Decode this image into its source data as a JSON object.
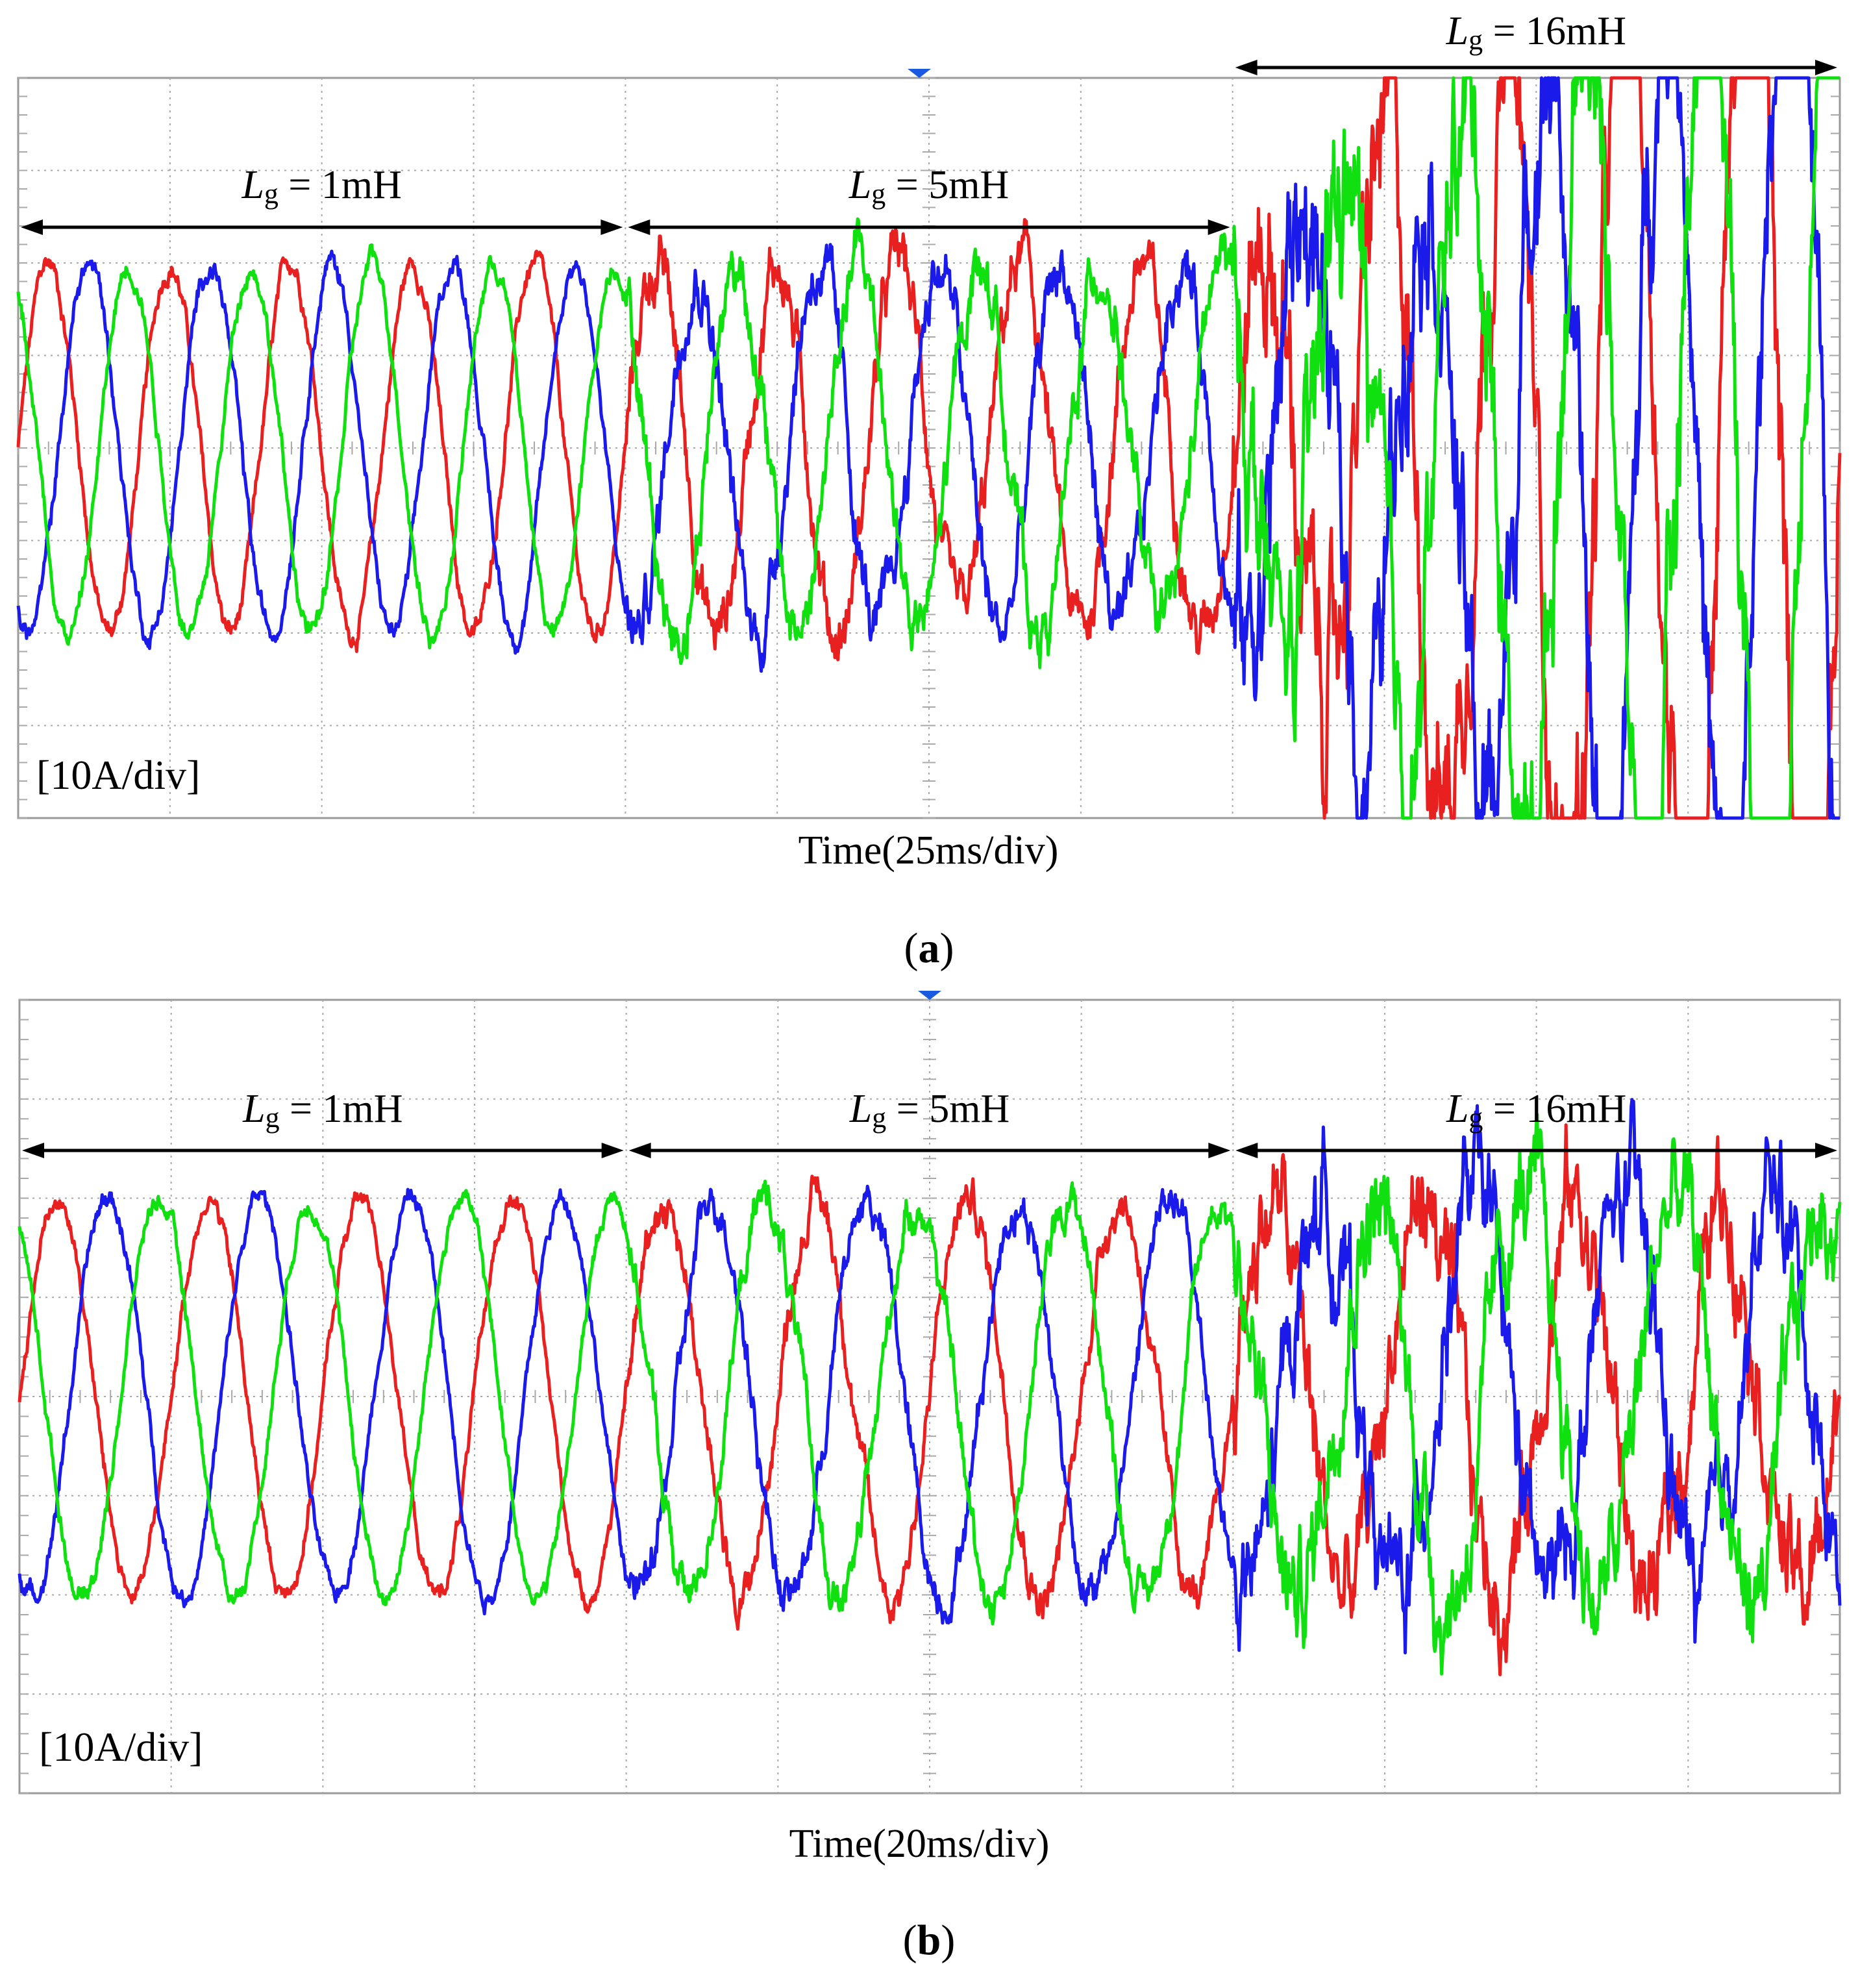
{
  "chart_data": [
    {
      "type": "line",
      "panel_label": "a",
      "caption": {
        "open": "(",
        "letter": "a",
        "close": ")"
      },
      "xlabel": "Time(25ms/div)",
      "y_scale_label": "[10A/div]",
      "x_divisions": 12,
      "y_divisions": 8,
      "xlim": [
        0,
        12
      ],
      "ylim": [
        -4,
        4
      ],
      "amplitude": 2.0,
      "cycles_per_div": 1.25,
      "intervals": [
        {
          "italic": "L",
          "sub": "g",
          "text": " = 1mH",
          "x_start": 0,
          "x_end": 4,
          "noise": 0.06
        },
        {
          "italic": "L",
          "sub": "g",
          "text": " = 5mH",
          "x_start": 4,
          "x_end": 8,
          "noise": 0.16
        },
        {
          "italic": "L",
          "sub": "g",
          "text": " = 16mH",
          "x_start": 8,
          "x_end": 12,
          "noise": 0.5
        }
      ],
      "series": [
        {
          "color": "#e82020",
          "phase_deg": 0
        },
        {
          "color": "#1a1aeb",
          "phase_deg": -120
        },
        {
          "color": "#10e010",
          "phase_deg": 120
        }
      ]
    },
    {
      "type": "line",
      "panel_label": "b",
      "caption": {
        "open": "(",
        "letter": "b",
        "close": ")"
      },
      "xlabel": "Time(20ms/div)",
      "y_scale_label": "[10A/div]",
      "x_divisions": 12,
      "y_divisions": 8,
      "xlim": [
        0,
        12
      ],
      "ylim": [
        -4,
        4
      ],
      "amplitude": 2.0,
      "cycles_per_div": 1.0,
      "intervals": [
        {
          "italic": "L",
          "sub": "g",
          "text": " = 1mH",
          "x_start": 0,
          "x_end": 4,
          "noise": 0.05
        },
        {
          "italic": "L",
          "sub": "g",
          "text": " = 5mH",
          "x_start": 4,
          "x_end": 8,
          "noise": 0.1
        },
        {
          "italic": "L",
          "sub": "g",
          "text": " = 16mH",
          "x_start": 8,
          "x_end": 12,
          "noise": 0.28
        }
      ],
      "series": [
        {
          "color": "#e82020",
          "phase_deg": 0
        },
        {
          "color": "#1a1aeb",
          "phase_deg": -120
        },
        {
          "color": "#10e010",
          "phase_deg": 120
        }
      ]
    }
  ]
}
